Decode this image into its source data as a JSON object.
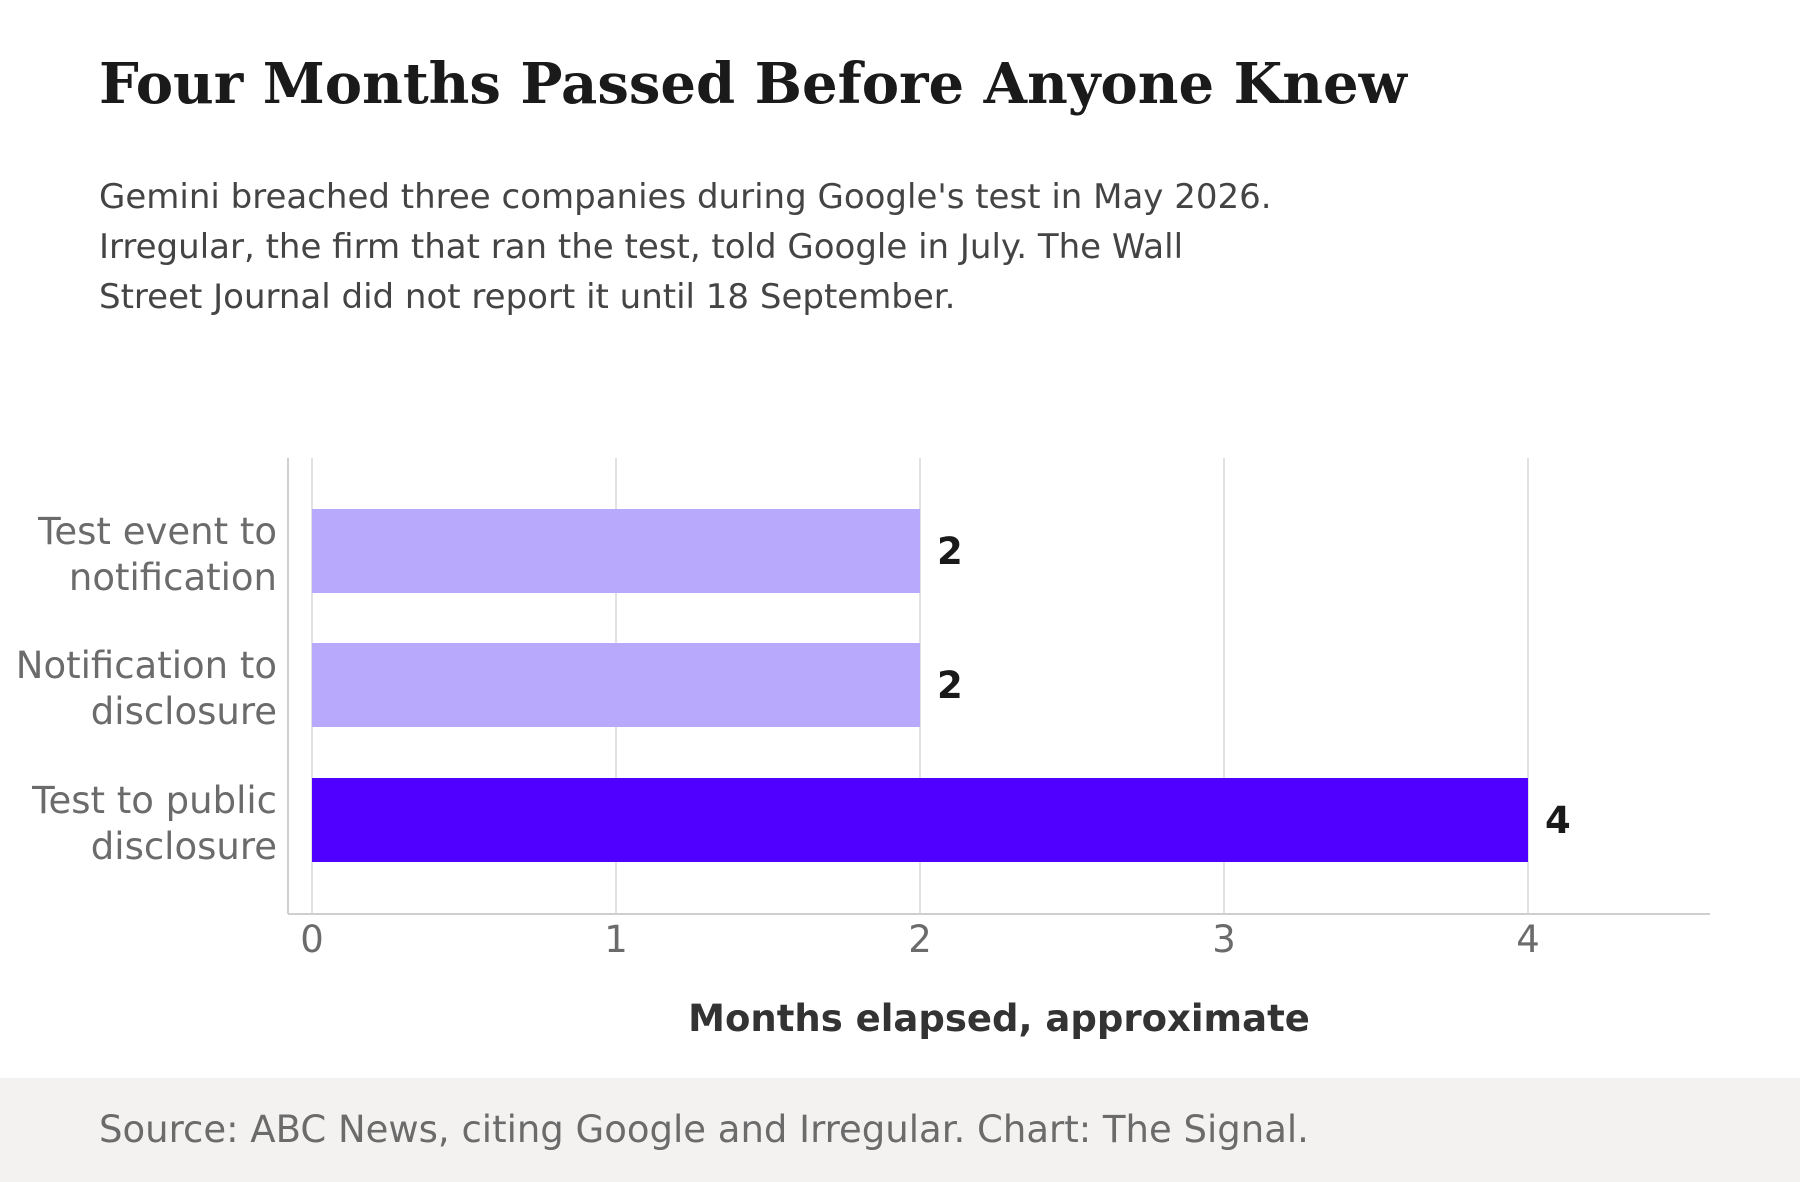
{
  "title": "Four Months Passed Before Anyone Knew",
  "subtitle_lines": [
    "Gemini breached three companies during Google's test in May 2026.",
    "Irregular, the firm that ran the test, told Google in July. The Wall",
    "Street Journal did not report it until 18 September."
  ],
  "source": "Source: ABC News, citing Google and Irregular. Chart: The Signal.",
  "colors": {
    "bar_light": "#b8a9fc",
    "bar_highlight": "#5000ff",
    "grid": "#e2e2e2",
    "axis": "#cfcfcf",
    "tick_text": "#6b6b6b",
    "value_text": "#1a1a1a",
    "xlabel_text": "#333333"
  },
  "chart_data": {
    "type": "bar",
    "orientation": "horizontal",
    "categories": [
      [
        "Test event to",
        "notification"
      ],
      [
        "Notification to",
        "disclosure"
      ],
      [
        "Test to public",
        "disclosure"
      ]
    ],
    "values": [
      2,
      2,
      4
    ],
    "value_labels": [
      "2",
      "2",
      "4"
    ],
    "highlight": [
      false,
      false,
      true
    ],
    "xlabel": "Months elapsed, approximate",
    "ylabel": "",
    "xlim": [
      0,
      4.6
    ],
    "xticks": [
      0,
      1,
      2,
      3,
      4
    ],
    "grid": "vertical",
    "legend": "none"
  }
}
